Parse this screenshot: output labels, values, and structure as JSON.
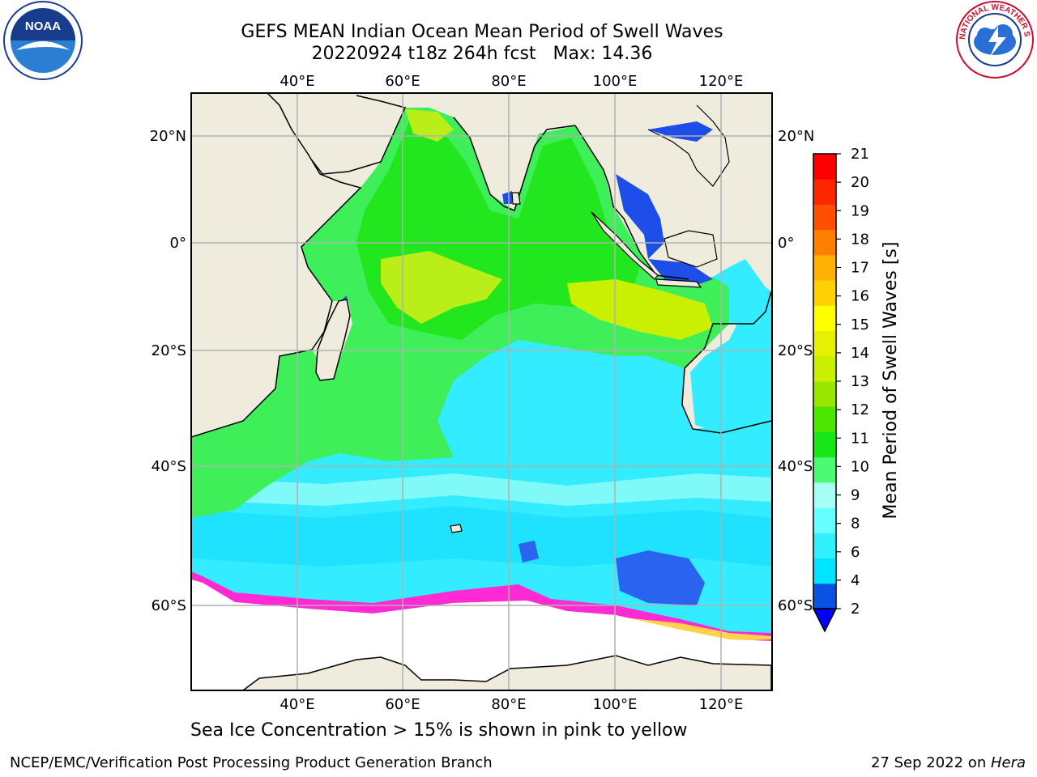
{
  "header": {
    "title": "GEFS MEAN Indian Ocean Mean Period of Swell Waves",
    "subtitle": "20220924 t18z 264h fcst",
    "max_label": "Max: 14.36"
  },
  "logos": {
    "noaa_text": "NOAA",
    "nws_text": "NATIONAL WEATHER SERVICE"
  },
  "map": {
    "lon_ticks": [
      "40°E",
      "60°E",
      "80°E",
      "100°E",
      "120°E"
    ],
    "lat_ticks": [
      "20°N",
      "0°",
      "20°S",
      "40°S",
      "60°S"
    ]
  },
  "colorbar": {
    "label": "Mean Period of Swell Waves [s]",
    "ticks": [
      "2",
      "4",
      "6",
      "8",
      "9",
      "10",
      "11",
      "12",
      "13",
      "14",
      "15",
      "16",
      "17",
      "18",
      "19",
      "20",
      "21"
    ],
    "colors": [
      "#0a52e6",
      "#00e5ff",
      "#33f0ff",
      "#66ffff",
      "#a6fff2",
      "#4dfa73",
      "#17e617",
      "#4de600",
      "#99e600",
      "#c8f000",
      "#e6f000",
      "#ffff00",
      "#ffd200",
      "#ffb000",
      "#ff8000",
      "#ff5000",
      "#ff2600",
      "#ff0000"
    ],
    "extend_color": "#0000ff"
  },
  "note": "Sea Ice Concentration > 15% is shown in pink to yellow",
  "footer": {
    "left": "NCEP/EMC/Verification Post Processing Product Generation Branch",
    "right_date": "27 Sep 2022 on ",
    "right_machine": "Hera"
  }
}
